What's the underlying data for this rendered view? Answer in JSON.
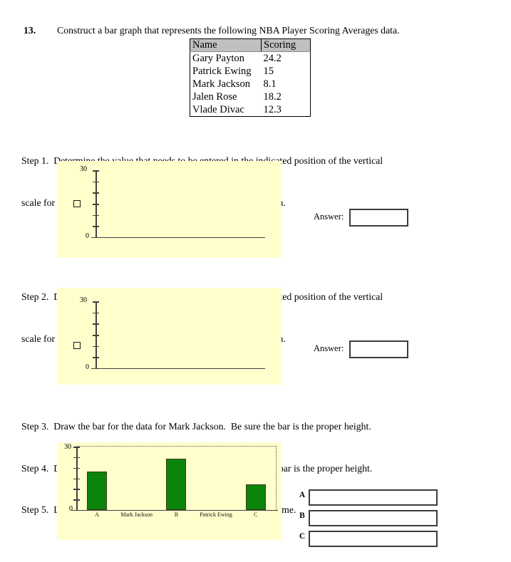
{
  "question": {
    "number": "13.",
    "text": "Construct a bar graph that represents the following NBA Player Scoring Averages data."
  },
  "data_table": {
    "headers": [
      "Name",
      "Scoring"
    ],
    "rows": [
      {
        "name": "Gary Payton",
        "scoring": "24.2"
      },
      {
        "name": "Patrick Ewing",
        "scoring": "15"
      },
      {
        "name": "Mark Jackson",
        "scoring": "8.1"
      },
      {
        "name": "Jalen Rose",
        "scoring": "18.2"
      },
      {
        "name": "Vlade Divac",
        "scoring": "12.3"
      }
    ]
  },
  "step1": {
    "line1": "Step 1.  Determine the value that needs to be entered in the indicated position of the vertical",
    "line2": "scale for this bar graph.  Remember that the scale must be uniform.",
    "answer_label": "Answer:",
    "answer_value": "",
    "scale": {
      "top_label": "30",
      "bottom_label": "0",
      "num_ticks": 6,
      "square_tick_index": 3
    }
  },
  "step2": {
    "line1": "Step 2.  Determine the value that needs to be entered in the indicated position of the vertical",
    "line2": "scale for this bar graph.  Remember that the scale must be uniform.",
    "answer_label": "Answer:",
    "answer_value": "",
    "scale": {
      "top_label": "30",
      "bottom_label": "0",
      "num_ticks": 6,
      "square_tick_index": 4
    }
  },
  "step3_text": "Step 3.  Draw the bar for the data for Mark Jackson.  Be sure the bar is the proper height.",
  "step4_text": "Step 4.  Draw the bar for the data for Patrick Ewing.  Be sure the bar is the proper height.",
  "step5_text": "Step 5.  Label each of the bars with the corresponding category name.",
  "chart_data": {
    "type": "bar",
    "categories": [
      "A",
      "Mark Jackson",
      "B",
      "Patrick Ewing",
      "C"
    ],
    "values": [
      18.2,
      null,
      24.2,
      null,
      12.3
    ],
    "title": "",
    "xlabel": "",
    "ylabel": "",
    "ylim": [
      0,
      30
    ],
    "ytick_interval": 5,
    "ytick_labels_shown": [
      "30",
      "0"
    ],
    "num_ticks": 6,
    "grid": false,
    "legend": false,
    "top_label": "30",
    "bottom_label": "0"
  },
  "label_answers": {
    "rows": [
      {
        "label": "A",
        "value": ""
      },
      {
        "label": "B",
        "value": ""
      },
      {
        "label": "C",
        "value": ""
      }
    ]
  },
  "colors": {
    "panel_yellow": "#ffffcc",
    "bar_green": "#0b840b",
    "table_header_gray": "#c0c0c0",
    "axis_gray": "#404040"
  }
}
